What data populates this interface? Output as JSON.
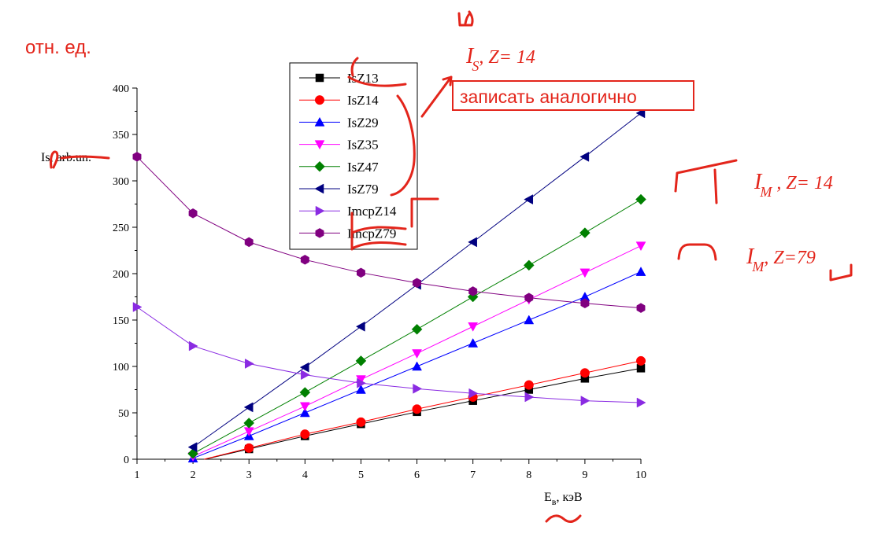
{
  "chart_data": {
    "type": "line",
    "xlabel_main": "E",
    "xlabel_sub": "в",
    "xlabel_tail": ", кэВ",
    "ylabel": "Is, arb.un.",
    "xlim": [
      1,
      10
    ],
    "ylim": [
      0,
      400
    ],
    "x_ticks": [
      1,
      2,
      3,
      4,
      5,
      6,
      7,
      8,
      9,
      10
    ],
    "y_ticks": [
      0,
      50,
      100,
      150,
      200,
      250,
      300,
      350,
      400
    ],
    "x_tick_labels": [
      "1",
      "2",
      "3",
      "4",
      "5",
      "6",
      "7",
      "8",
      "9",
      "10"
    ],
    "y_tick_labels": [
      "0",
      "50",
      "100",
      "150",
      "200",
      "250",
      "300",
      "350",
      "400"
    ],
    "grid": false,
    "legend_position": "top-center",
    "series": [
      {
        "name": "IsZ13",
        "color": "#000000",
        "marker": "square",
        "x": [
          2,
          3,
          4,
          5,
          6,
          7,
          8,
          9,
          10
        ],
        "y": [
          -3,
          11,
          25,
          38,
          51,
          63,
          75,
          87,
          98
        ]
      },
      {
        "name": "IsZ14",
        "color": "#ff0000",
        "marker": "circle",
        "x": [
          2,
          3,
          4,
          5,
          6,
          7,
          8,
          9,
          10
        ],
        "y": [
          -3,
          12,
          27,
          40,
          54,
          67,
          80,
          93,
          106
        ]
      },
      {
        "name": "IsZ29",
        "color": "#0000ff",
        "marker": "triangle-up",
        "x": [
          2,
          3,
          4,
          5,
          6,
          7,
          8,
          9,
          10
        ],
        "y": [
          1,
          25,
          50,
          75,
          100,
          125,
          150,
          175,
          202
        ]
      },
      {
        "name": "IsZ35",
        "color": "#ff00ff",
        "marker": "triangle-down",
        "x": [
          2,
          3,
          4,
          5,
          6,
          7,
          8,
          9,
          10
        ],
        "y": [
          3,
          30,
          57,
          86,
          114,
          143,
          172,
          201,
          230
        ]
      },
      {
        "name": "IsZ47",
        "color": "#008000",
        "marker": "diamond",
        "x": [
          2,
          3,
          4,
          5,
          6,
          7,
          8,
          9,
          10
        ],
        "y": [
          6,
          39,
          72,
          106,
          140,
          175,
          209,
          244,
          280
        ]
      },
      {
        "name": "IsZ79",
        "color": "#000080",
        "marker": "triangle-left",
        "x": [
          2,
          3,
          4,
          5,
          6,
          7,
          8,
          9,
          10
        ],
        "y": [
          13,
          56,
          99,
          143,
          188,
          234,
          280,
          326,
          373
        ]
      },
      {
        "name": "ImcpZ14",
        "color": "#8a2be2",
        "marker": "triangle-right",
        "x": [
          1,
          2,
          3,
          4,
          5,
          6,
          7,
          8,
          9,
          10
        ],
        "y": [
          164,
          122,
          103,
          91,
          82,
          76,
          71,
          67,
          63,
          61
        ]
      },
      {
        "name": "ImcpZ79",
        "color": "#800080",
        "marker": "hexagon",
        "x": [
          1,
          2,
          3,
          4,
          5,
          6,
          7,
          8,
          9,
          10
        ],
        "y": [
          326,
          265,
          234,
          215,
          201,
          190,
          181,
          174,
          168,
          163
        ]
      }
    ]
  },
  "annotations": {
    "unit_label": "отн. ед.",
    "box_note": "записать аналогично",
    "is_label_letter": "I",
    "is_label_sub": "S",
    "is_label_tail": ", Z=  14",
    "im14_letter": "I",
    "im14_sub": "M",
    "im14_tail": "  , Z=  14",
    "im79_letter": "I",
    "im79_sub": "M",
    "im79_tail": ", Z=79"
  },
  "colors": {
    "annotation_red": "#e3251b"
  }
}
